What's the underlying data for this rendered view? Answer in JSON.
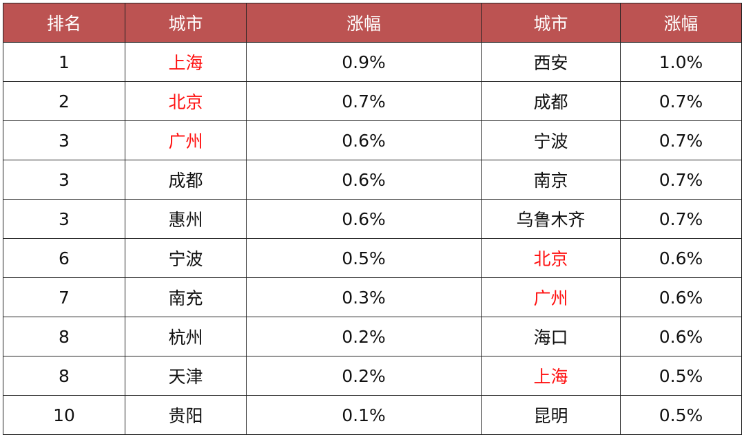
{
  "colors": {
    "header_bg": "#bc5352",
    "highlight": "#ff1010"
  },
  "headers": [
    "排名",
    "城市",
    "涨幅",
    "城市",
    "涨幅"
  ],
  "rows": [
    {
      "rank": "1",
      "city1": "上海",
      "chg1": "0.9%",
      "city2": "西安",
      "chg2": "1.0%",
      "hl1": true,
      "hl2": false
    },
    {
      "rank": "2",
      "city1": "北京",
      "chg1": "0.7%",
      "city2": "成都",
      "chg2": "0.7%",
      "hl1": true,
      "hl2": false
    },
    {
      "rank": "3",
      "city1": "广州",
      "chg1": "0.6%",
      "city2": "宁波",
      "chg2": "0.7%",
      "hl1": true,
      "hl2": false
    },
    {
      "rank": "3",
      "city1": "成都",
      "chg1": "0.6%",
      "city2": "南京",
      "chg2": "0.7%",
      "hl1": false,
      "hl2": false
    },
    {
      "rank": "3",
      "city1": "惠州",
      "chg1": "0.6%",
      "city2": "乌鲁木齐",
      "chg2": "0.7%",
      "hl1": false,
      "hl2": false
    },
    {
      "rank": "6",
      "city1": "宁波",
      "chg1": "0.5%",
      "city2": "北京",
      "chg2": "0.6%",
      "hl1": false,
      "hl2": true
    },
    {
      "rank": "7",
      "city1": "南充",
      "chg1": "0.3%",
      "city2": "广州",
      "chg2": "0.6%",
      "hl1": false,
      "hl2": true
    },
    {
      "rank": "8",
      "city1": "杭州",
      "chg1": "0.2%",
      "city2": "海口",
      "chg2": "0.6%",
      "hl1": false,
      "hl2": false
    },
    {
      "rank": "8",
      "city1": "天津",
      "chg1": "0.2%",
      "city2": "上海",
      "chg2": "0.5%",
      "hl1": false,
      "hl2": true
    },
    {
      "rank": "10",
      "city1": "贵阳",
      "chg1": "0.1%",
      "city2": "昆明",
      "chg2": "0.5%",
      "hl1": false,
      "hl2": false
    }
  ]
}
